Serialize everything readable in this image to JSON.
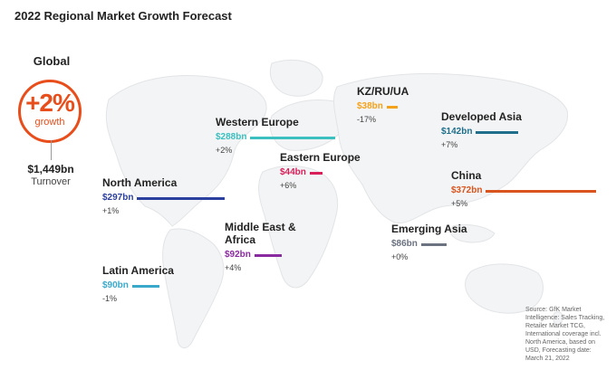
{
  "title": "2022 Regional Market Growth Forecast",
  "global": {
    "label": "Global",
    "growth_value": "+2%",
    "growth_caption": "growth",
    "turnover_value": "$1,449bn",
    "turnover_caption": "Turnover"
  },
  "source_note": "Source: GfK Market Intelligence: Sales Tracking, Retailer Market TCG, International coverage incl. North America, based on USD, Forecasting date: March 21, 2022",
  "chart_data": {
    "type": "bar",
    "unit": "bn",
    "categories": [
      "North America",
      "Latin America",
      "Western Europe",
      "Eastern Europe",
      "Middle East & Africa",
      "KZ/RU/UA",
      "Developed Asia",
      "China",
      "Emerging Asia"
    ],
    "series": [
      {
        "values": [
          297,
          90,
          288,
          44,
          92,
          38,
          142,
          372,
          86
        ]
      }
    ],
    "data_labels": [
      "$297bn",
      "$90bn",
      "$288bn",
      "$44bn",
      "$92bn",
      "$38bn",
      "$142bn",
      "$372bn",
      "$86bn"
    ],
    "growth_labels": [
      "+1%",
      "-1%",
      "+2%",
      "+6%",
      "+4%",
      "-17%",
      "+7%",
      "+5%",
      "+0%"
    ],
    "colors": [
      "#2b3f9e",
      "#3aa9c9",
      "#3bbfbf",
      "#d81f5a",
      "#8a2aa0",
      "#f5a21b",
      "#1f6f8b",
      "#d9541e",
      "#6b7280"
    ]
  }
}
